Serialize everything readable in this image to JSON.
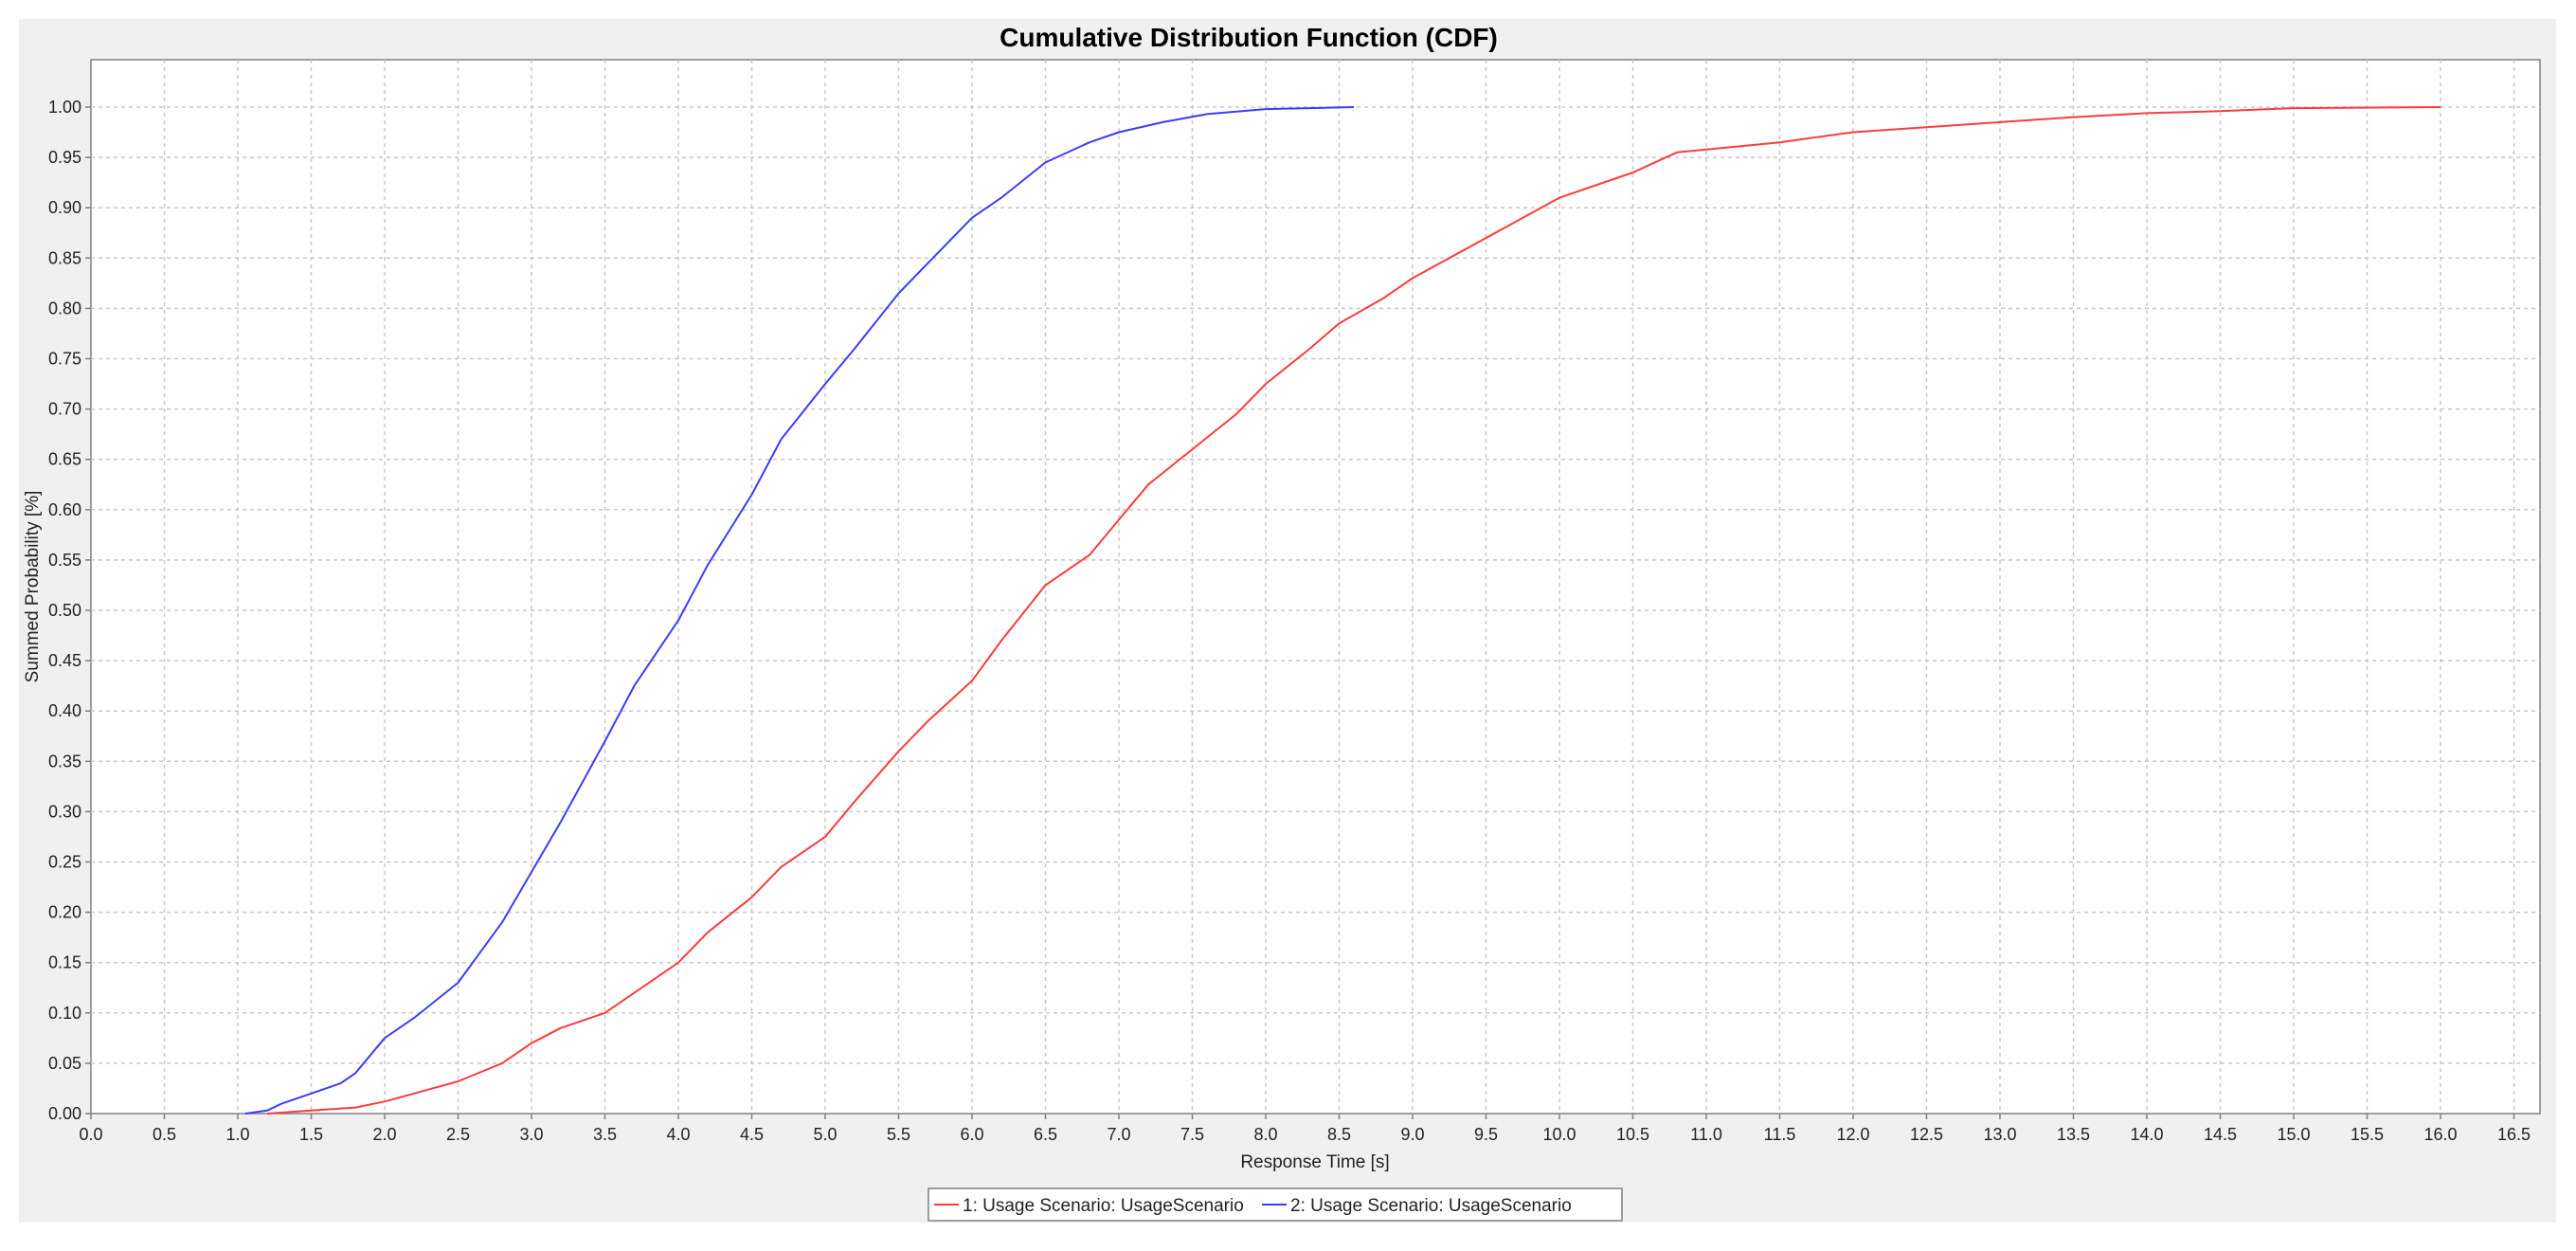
{
  "chart_data": {
    "type": "line",
    "title": "Cumulative Distribution Function (CDF)",
    "xlabel": "Response Time [s]",
    "ylabel": "Summed Probability [%]",
    "xlim": [
      0,
      16.5
    ],
    "ylim": [
      0,
      1.05
    ],
    "grid": true,
    "legend_position": "bottom-center",
    "x_ticks": [
      "0.0",
      "0.5",
      "1.0",
      "1.5",
      "2.0",
      "2.5",
      "3.0",
      "3.5",
      "4.0",
      "4.5",
      "5.0",
      "5.5",
      "6.0",
      "6.5",
      "7.0",
      "7.5",
      "8.0",
      "8.5",
      "9.0",
      "9.5",
      "10.0",
      "10.5",
      "11.0",
      "11.5",
      "12.0",
      "12.5",
      "13.0",
      "13.5",
      "14.0",
      "14.5",
      "15.0",
      "15.5",
      "16.0",
      "16.5"
    ],
    "y_ticks": [
      "0.00",
      "0.05",
      "0.10",
      "0.15",
      "0.20",
      "0.25",
      "0.30",
      "0.35",
      "0.40",
      "0.45",
      "0.50",
      "0.55",
      "0.60",
      "0.65",
      "0.70",
      "0.75",
      "0.80",
      "0.85",
      "0.90",
      "0.95",
      "1.00"
    ],
    "series": [
      {
        "name": "1: Usage Scenario: UsageScenario",
        "color": "#ff3b3b",
        "points": [
          [
            1.2,
            0.0
          ],
          [
            1.5,
            0.003
          ],
          [
            1.8,
            0.006
          ],
          [
            2.0,
            0.012
          ],
          [
            2.2,
            0.02
          ],
          [
            2.5,
            0.032
          ],
          [
            2.8,
            0.05
          ],
          [
            3.0,
            0.07
          ],
          [
            3.2,
            0.085
          ],
          [
            3.5,
            0.1
          ],
          [
            3.7,
            0.12
          ],
          [
            4.0,
            0.15
          ],
          [
            4.2,
            0.18
          ],
          [
            4.5,
            0.215
          ],
          [
            4.7,
            0.245
          ],
          [
            5.0,
            0.275
          ],
          [
            5.2,
            0.31
          ],
          [
            5.5,
            0.36
          ],
          [
            5.7,
            0.39
          ],
          [
            6.0,
            0.43
          ],
          [
            6.2,
            0.47
          ],
          [
            6.5,
            0.525
          ],
          [
            6.8,
            0.555
          ],
          [
            7.0,
            0.59
          ],
          [
            7.2,
            0.625
          ],
          [
            7.5,
            0.66
          ],
          [
            7.8,
            0.695
          ],
          [
            8.0,
            0.725
          ],
          [
            8.3,
            0.76
          ],
          [
            8.5,
            0.785
          ],
          [
            8.8,
            0.81
          ],
          [
            9.0,
            0.83
          ],
          [
            9.5,
            0.87
          ],
          [
            10.0,
            0.91
          ],
          [
            10.5,
            0.935
          ],
          [
            10.8,
            0.955
          ],
          [
            11.5,
            0.965
          ],
          [
            12.0,
            0.975
          ],
          [
            12.5,
            0.98
          ],
          [
            13.0,
            0.985
          ],
          [
            13.5,
            0.99
          ],
          [
            14.0,
            0.994
          ],
          [
            14.5,
            0.996
          ],
          [
            15.0,
            0.999
          ],
          [
            16.0,
            1.0
          ]
        ]
      },
      {
        "name": "2: Usage Scenario: UsageScenario",
        "color": "#3c3cff",
        "points": [
          [
            1.05,
            0.0
          ],
          [
            1.2,
            0.003
          ],
          [
            1.3,
            0.01
          ],
          [
            1.5,
            0.02
          ],
          [
            1.7,
            0.03
          ],
          [
            1.8,
            0.04
          ],
          [
            2.0,
            0.075
          ],
          [
            2.2,
            0.095
          ],
          [
            2.5,
            0.13
          ],
          [
            2.8,
            0.19
          ],
          [
            3.0,
            0.24
          ],
          [
            3.2,
            0.29
          ],
          [
            3.5,
            0.37
          ],
          [
            3.7,
            0.425
          ],
          [
            4.0,
            0.49
          ],
          [
            4.2,
            0.545
          ],
          [
            4.5,
            0.615
          ],
          [
            4.7,
            0.67
          ],
          [
            5.0,
            0.725
          ],
          [
            5.2,
            0.76
          ],
          [
            5.5,
            0.815
          ],
          [
            5.7,
            0.845
          ],
          [
            6.0,
            0.89
          ],
          [
            6.2,
            0.91
          ],
          [
            6.5,
            0.945
          ],
          [
            6.8,
            0.965
          ],
          [
            7.0,
            0.975
          ],
          [
            7.3,
            0.985
          ],
          [
            7.6,
            0.993
          ],
          [
            8.0,
            0.998
          ],
          [
            8.6,
            1.0
          ]
        ]
      }
    ]
  }
}
